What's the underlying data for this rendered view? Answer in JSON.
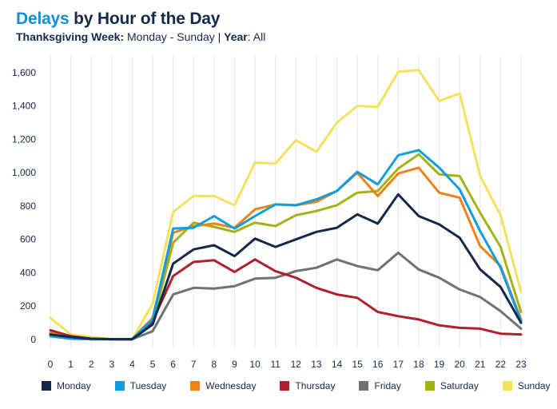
{
  "header": {
    "title_accent": "Delays",
    "title_rest": " by Hour of the Day",
    "subtitle_bold1": "Thanksgiving Week:",
    "subtitle_text1": " Monday - Sunday | ",
    "subtitle_bold2": "Year",
    "subtitle_text2": ": All"
  },
  "colors": {
    "Monday": "#13294b",
    "Tuesday": "#0f9de0",
    "Wednesday": "#ee8215",
    "Thursday": "#b0202a",
    "Friday": "#707075",
    "Saturday": "#a3b214",
    "Sunday": "#f5e15c"
  },
  "chart_data": {
    "type": "line",
    "title": "Delays by Hour of the Day",
    "xlabel": "",
    "ylabel": "",
    "x": [
      0,
      1,
      2,
      3,
      4,
      5,
      6,
      7,
      8,
      9,
      10,
      11,
      12,
      13,
      14,
      15,
      16,
      17,
      18,
      19,
      20,
      21,
      22,
      23
    ],
    "ylim": [
      0,
      1700
    ],
    "yticks": [
      0,
      200,
      400,
      600,
      800,
      1000,
      1200,
      1400,
      1600
    ],
    "ytick_labels": [
      "0",
      "200",
      "400",
      "600",
      "800",
      "1,000",
      "1,200",
      "1,400",
      "1,600"
    ],
    "grid": "vertical",
    "legend": "bottom",
    "series": [
      {
        "name": "Monday",
        "values": [
          30,
          15,
          5,
          2,
          2,
          90,
          455,
          540,
          565,
          500,
          605,
          555,
          600,
          645,
          670,
          750,
          695,
          870,
          740,
          690,
          610,
          420,
          315,
          100
        ]
      },
      {
        "name": "Tuesday",
        "values": [
          20,
          5,
          2,
          2,
          2,
          120,
          665,
          670,
          740,
          665,
          740,
          810,
          805,
          840,
          890,
          1005,
          930,
          1105,
          1135,
          1030,
          900,
          650,
          430,
          110
        ]
      },
      {
        "name": "Wednesday",
        "values": [
          40,
          10,
          2,
          2,
          2,
          130,
          640,
          680,
          695,
          670,
          780,
          810,
          805,
          825,
          890,
          1000,
          860,
          995,
          1030,
          880,
          850,
          560,
          440,
          120
        ]
      },
      {
        "name": "Thursday",
        "values": [
          55,
          20,
          5,
          2,
          2,
          110,
          380,
          465,
          475,
          405,
          480,
          410,
          370,
          310,
          270,
          250,
          165,
          140,
          120,
          85,
          70,
          65,
          35,
          30
        ]
      },
      {
        "name": "Friday",
        "values": [
          20,
          5,
          2,
          2,
          2,
          50,
          270,
          310,
          305,
          320,
          365,
          370,
          410,
          430,
          480,
          440,
          415,
          520,
          420,
          370,
          300,
          255,
          170,
          65
        ]
      },
      {
        "name": "Saturday",
        "values": [
          30,
          10,
          2,
          2,
          2,
          100,
          580,
          700,
          675,
          645,
          700,
          680,
          745,
          770,
          805,
          880,
          890,
          1025,
          1110,
          990,
          980,
          760,
          555,
          165
        ]
      },
      {
        "name": "Sunday",
        "values": [
          130,
          30,
          15,
          2,
          2,
          215,
          765,
          860,
          860,
          805,
          1060,
          1055,
          1195,
          1125,
          1300,
          1400,
          1395,
          1605,
          1615,
          1430,
          1475,
          980,
          745,
          285
        ]
      }
    ]
  }
}
